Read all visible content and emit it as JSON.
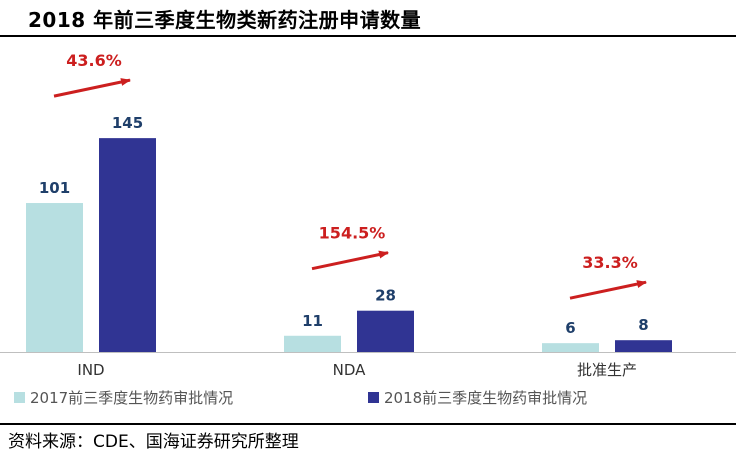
{
  "title": "2018 年前三季度生物类新药注册申请数量",
  "source": "资料来源：CDE、国海证券研究所整理",
  "colors": {
    "series_2017": "#b7dfe1",
    "series_2018": "#303493",
    "growth": "#cc1f1f",
    "value_label": "#1f3f6a"
  },
  "chart_data": {
    "type": "bar",
    "title": "2018 年前三季度生物类新药注册申请数量",
    "categories": [
      "IND",
      "NDA",
      "批准生产"
    ],
    "series": [
      {
        "name": "2017前三季度生物药审批情况",
        "values": [
          101,
          11,
          6
        ],
        "color": "#b7dfe1"
      },
      {
        "name": "2018前三季度生物药审批情况",
        "values": [
          145,
          28,
          8
        ],
        "color": "#303493"
      }
    ],
    "growth_labels": [
      "43.6%",
      "154.5%",
      "33.3%"
    ],
    "ylim": [
      0,
      160
    ],
    "grid": false,
    "legend_position": "bottom"
  }
}
